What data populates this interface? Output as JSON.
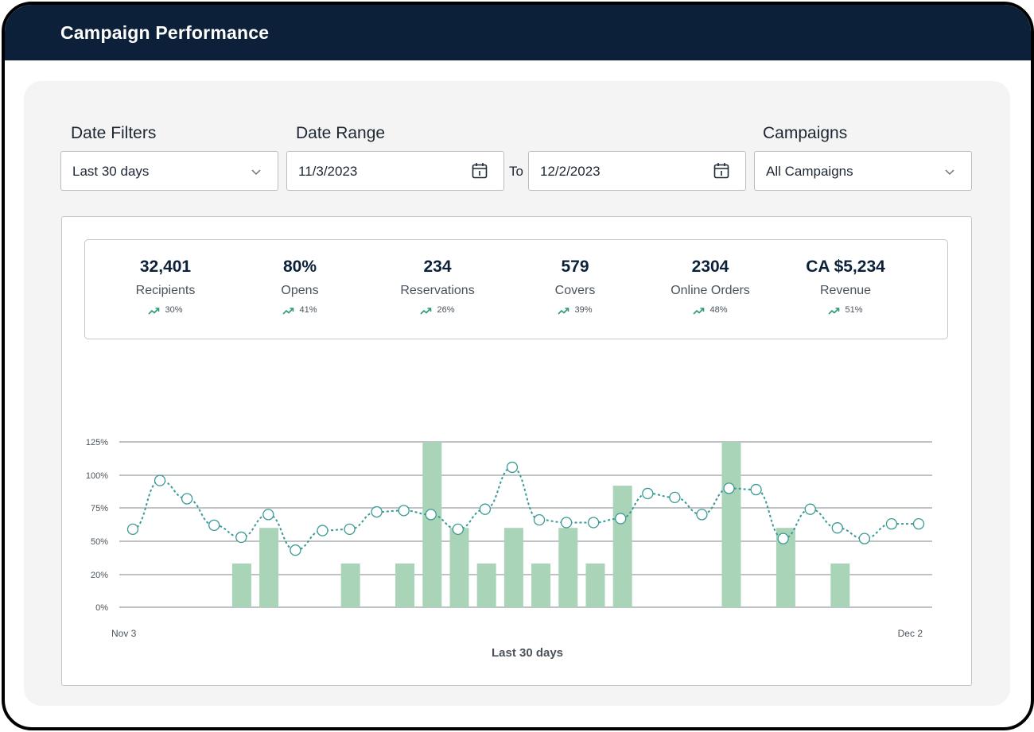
{
  "header": {
    "title": "Campaign Performance"
  },
  "filters": {
    "date_filters_label": "Date Filters",
    "date_filter_value": "Last 30 days",
    "date_range_label": "Date Range",
    "start_date": "11/3/2023",
    "to_label": "To",
    "end_date": "12/2/2023",
    "campaigns_label": "Campaigns",
    "campaign_value": "All Campaigns"
  },
  "stats": [
    {
      "value": "32,401",
      "label": "Recipients",
      "delta": "30%"
    },
    {
      "value": "80%",
      "label": "Opens",
      "delta": "41%"
    },
    {
      "value": "234",
      "label": "Reservations",
      "delta": "26%"
    },
    {
      "value": "579",
      "label": "Covers",
      "delta": "39%"
    },
    {
      "value": "2304",
      "label": "Online Orders",
      "delta": "48%"
    },
    {
      "value": "CA $5,234",
      "label": "Revenue",
      "delta": "51%"
    }
  ],
  "colors": {
    "header_bg": "#0c2139",
    "bar": "#a9d4b8",
    "line": "#3a9a96",
    "trend_up": "#2e9a72"
  },
  "chart_data": {
    "type": "bar",
    "xlabel": "Last 30 days",
    "x_start_label": "Nov 3",
    "x_end_label": "Dec 2",
    "y_ticks": [
      "0%",
      "20%",
      "50%",
      "75%",
      "100%",
      "125%"
    ],
    "ylim": [
      0,
      125
    ],
    "grid": true,
    "bar_values": [
      0,
      0,
      30,
      60,
      0,
      0,
      30,
      0,
      30,
      125,
      60,
      30,
      60,
      30,
      60,
      30,
      92,
      0,
      0,
      0,
      125,
      0,
      60,
      0,
      30,
      0,
      0,
      0,
      0,
      0
    ],
    "line_values": [
      59,
      96,
      82,
      62,
      53,
      70,
      42,
      58,
      59,
      72,
      73,
      70,
      59,
      74,
      106,
      66,
      64,
      64,
      67,
      86,
      83,
      70,
      90,
      89,
      52,
      74,
      60,
      52,
      63,
      63
    ]
  }
}
